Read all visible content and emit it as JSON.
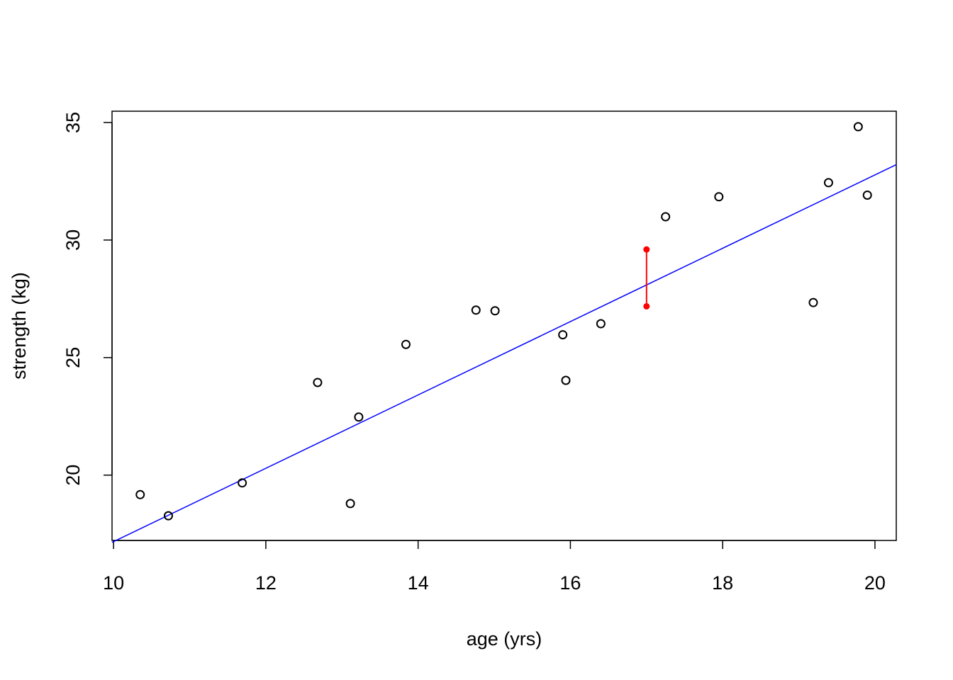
{
  "chart_data": {
    "type": "scatter",
    "title": "",
    "xlabel": "age (yrs)",
    "ylabel": "strength (kg)",
    "xlim": [
      9.98,
      20.28
    ],
    "ylim": [
      17.22,
      35.48
    ],
    "x_ticks": [
      10,
      12,
      14,
      16,
      18,
      20
    ],
    "y_ticks": [
      20,
      25,
      30,
      35
    ],
    "grid": false,
    "series": [
      {
        "marker": "open-circle",
        "color": "#000000",
        "points": [
          {
            "x": 10.35,
            "y": 19.17
          },
          {
            "x": 10.72,
            "y": 18.27
          },
          {
            "x": 11.69,
            "y": 19.67
          },
          {
            "x": 12.68,
            "y": 23.94
          },
          {
            "x": 13.11,
            "y": 18.79
          },
          {
            "x": 13.22,
            "y": 22.47
          },
          {
            "x": 13.84,
            "y": 25.56
          },
          {
            "x": 14.76,
            "y": 27.02
          },
          {
            "x": 15.01,
            "y": 26.99
          },
          {
            "x": 15.9,
            "y": 25.97
          },
          {
            "x": 15.94,
            "y": 24.03
          },
          {
            "x": 16.4,
            "y": 26.44
          },
          {
            "x": 17.25,
            "y": 30.99
          },
          {
            "x": 17.95,
            "y": 31.84
          },
          {
            "x": 19.19,
            "y": 27.34
          },
          {
            "x": 19.39,
            "y": 32.44
          },
          {
            "x": 19.78,
            "y": 34.82
          },
          {
            "x": 19.9,
            "y": 31.91
          }
        ]
      }
    ],
    "fit_line": {
      "color": "#0000ff",
      "intercept": 1.57,
      "slope": 1.56
    },
    "highlight": {
      "color": "#ff0000",
      "x": 17.0,
      "y_top": 29.6,
      "y_bottom": 27.18
    }
  }
}
